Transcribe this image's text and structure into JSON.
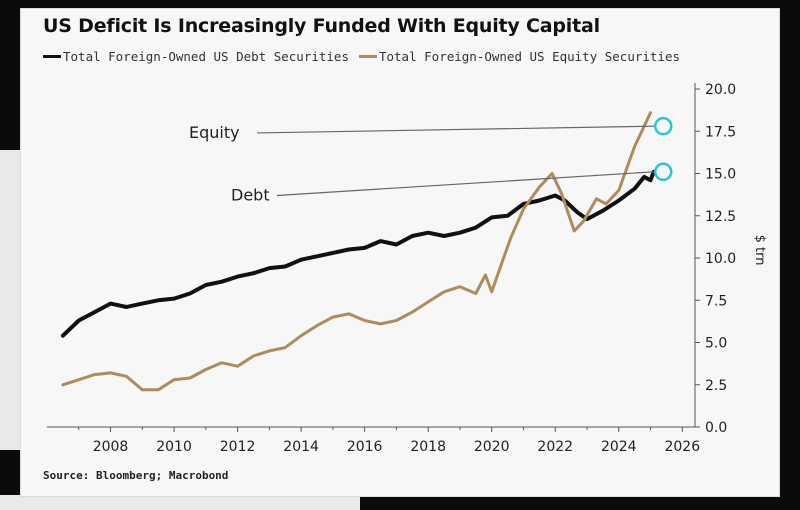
{
  "chart_data": {
    "type": "line",
    "title": "US Deficit Is Increasingly Funded With Equity Capital",
    "ylabel": "$ trn",
    "xlabel": "",
    "source": "Source: Bloomberg; Macrobond",
    "xlim": [
      2006,
      2026.4
    ],
    "ylim": [
      0,
      20
    ],
    "x_ticks": [
      "2008",
      "2010",
      "2012",
      "2014",
      "2016",
      "2018",
      "2020",
      "2022",
      "2024",
      "2026"
    ],
    "y_ticks": [
      "0.0",
      "2.5",
      "5.0",
      "7.5",
      "10.0",
      "12.5",
      "15.0",
      "17.5",
      "20.0"
    ],
    "y_axis_side": "right",
    "grid": false,
    "legend_position": "top",
    "colors": {
      "debt": "#111111",
      "equity": "#b08a5b",
      "marker": "#29c6d8",
      "axis": "#555555"
    },
    "series": [
      {
        "name": "Total Foreign-Owned US Debt Securities",
        "annotation": "Debt",
        "x": [
          2006.5,
          2007.0,
          2007.5,
          2008.0,
          2008.5,
          2009.0,
          2009.5,
          2010.0,
          2010.5,
          2011.0,
          2011.5,
          2012.0,
          2012.5,
          2013.0,
          2013.5,
          2014.0,
          2014.5,
          2015.0,
          2015.5,
          2016.0,
          2016.5,
          2017.0,
          2017.5,
          2018.0,
          2018.5,
          2019.0,
          2019.5,
          2020.0,
          2020.5,
          2021.0,
          2021.5,
          2022.0,
          2022.3,
          2022.7,
          2023.0,
          2023.5,
          2024.0,
          2024.5,
          2024.8,
          2025.0,
          2025.1
        ],
        "values": [
          5.4,
          6.3,
          6.8,
          7.3,
          7.1,
          7.3,
          7.5,
          7.6,
          7.9,
          8.4,
          8.6,
          8.9,
          9.1,
          9.4,
          9.5,
          9.9,
          10.1,
          10.3,
          10.5,
          10.6,
          11.0,
          10.8,
          11.3,
          11.5,
          11.3,
          11.5,
          11.8,
          12.4,
          12.5,
          13.2,
          13.4,
          13.7,
          13.4,
          12.7,
          12.3,
          12.8,
          13.4,
          14.1,
          14.8,
          14.6,
          15.1
        ]
      },
      {
        "name": "Total Foreign-Owned US Equity Securities",
        "annotation": "Equity",
        "x": [
          2006.5,
          2007.0,
          2007.5,
          2008.0,
          2008.5,
          2009.0,
          2009.5,
          2010.0,
          2010.5,
          2011.0,
          2011.5,
          2012.0,
          2012.5,
          2013.0,
          2013.5,
          2014.0,
          2014.5,
          2015.0,
          2015.5,
          2016.0,
          2016.5,
          2017.0,
          2017.5,
          2018.0,
          2018.5,
          2019.0,
          2019.5,
          2019.8,
          2020.0,
          2020.3,
          2020.6,
          2021.0,
          2021.5,
          2021.9,
          2022.2,
          2022.6,
          2022.9,
          2023.3,
          2023.6,
          2024.0,
          2024.5,
          2024.8,
          2025.0
        ],
        "values": [
          2.5,
          2.8,
          3.1,
          3.2,
          3.0,
          2.2,
          2.2,
          2.8,
          2.9,
          3.4,
          3.8,
          3.6,
          4.2,
          4.5,
          4.7,
          5.4,
          6.0,
          6.5,
          6.7,
          6.3,
          6.1,
          6.3,
          6.8,
          7.4,
          8.0,
          8.3,
          7.9,
          9.0,
          8.0,
          9.6,
          11.2,
          12.9,
          14.2,
          15.0,
          13.8,
          11.6,
          12.2,
          13.5,
          13.2,
          14.0,
          16.6,
          17.8,
          18.6
        ]
      }
    ],
    "annotations": {
      "equity": "Equity",
      "debt": "Debt"
    }
  }
}
